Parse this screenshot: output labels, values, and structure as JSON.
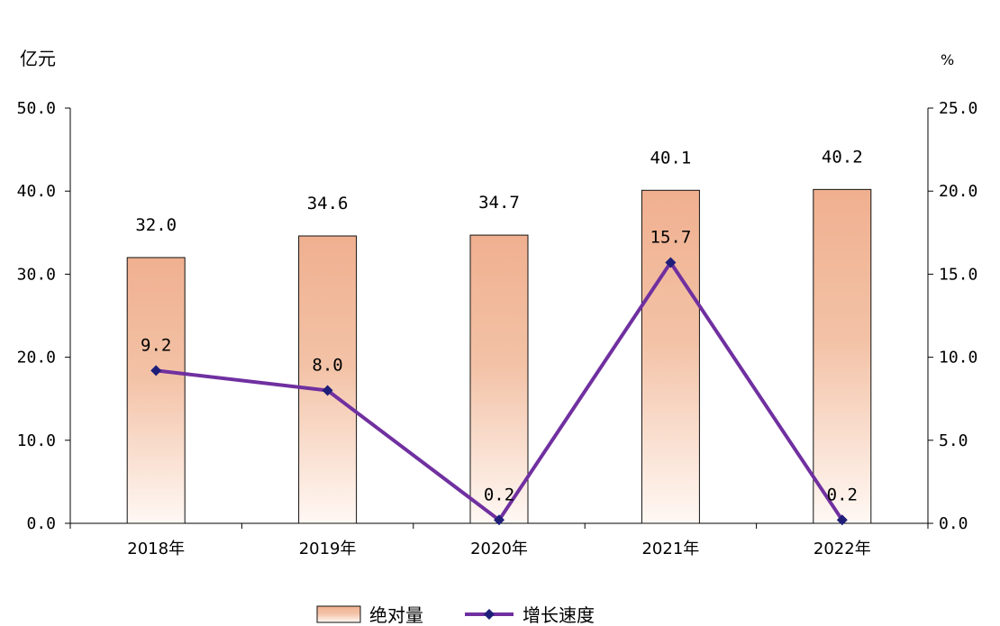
{
  "chart_data": {
    "type": "bar",
    "categories": [
      "2018年",
      "2019年",
      "2020年",
      "2021年",
      "2022年"
    ],
    "left_axis": {
      "unit": "亿元",
      "ylim": [
        0,
        50
      ],
      "ticks": [
        "0.0",
        "10.0",
        "20.0",
        "30.0",
        "40.0",
        "50.0"
      ]
    },
    "right_axis": {
      "unit": "%",
      "ylim": [
        0,
        25
      ],
      "ticks": [
        "0.0",
        "5.0",
        "10.0",
        "15.0",
        "20.0",
        "25.0"
      ]
    },
    "series": [
      {
        "name": "绝对量",
        "type": "bar",
        "axis": "left",
        "values": [
          32.0,
          34.6,
          34.7,
          40.1,
          40.2
        ],
        "labels": [
          "32.0",
          "34.6",
          "34.7",
          "40.1",
          "40.2"
        ]
      },
      {
        "name": "增长速度",
        "type": "line",
        "axis": "right",
        "values": [
          9.2,
          8.0,
          0.2,
          15.7,
          0.2
        ],
        "labels": [
          "9.2",
          "8.0",
          "0.2",
          "15.7",
          "0.2"
        ]
      }
    ],
    "grid": false,
    "legend": "bottom-center",
    "colors": {
      "bar_top": "#f0b090",
      "bar_bottom": "#fff8f4",
      "bar_edge": "#111111",
      "line": "#7030a0",
      "marker": "#1f1f7a",
      "axis": "#000000"
    }
  }
}
